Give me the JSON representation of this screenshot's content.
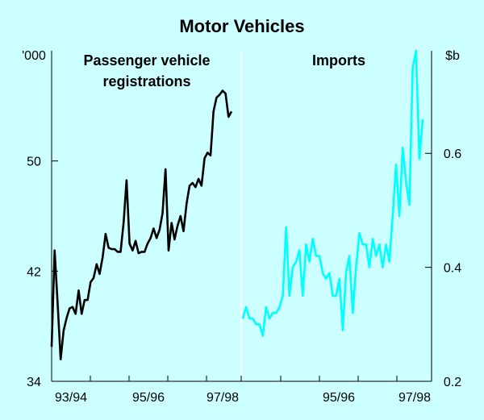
{
  "chart_data": {
    "title": "Motor Vehicles",
    "colors": {
      "background": "#ccffff",
      "registrations": "#000000",
      "imports": "#00ffff",
      "axes": "#000000",
      "divider": "#ffffff"
    },
    "panels": [
      {
        "type": "line",
        "label_lines": [
          "Passenger vehicle",
          "registrations"
        ],
        "unit": "'000",
        "y_ticks": [
          34,
          42,
          50
        ],
        "ylim": [
          34,
          58
        ],
        "x_ticks": [
          "93/94",
          "95/96",
          "97/98"
        ],
        "series": [
          {
            "color": "#000000",
            "values": [
              36.5,
              43.5,
              39.7,
              35.6,
              37.7,
              38.6,
              39.3,
              39.4,
              38.9,
              40.6,
              38.9,
              39.9,
              39.9,
              41.2,
              41.5,
              42.5,
              41.8,
              43.0,
              44.7,
              43.7,
              43.6,
              43.6,
              43.4,
              43.4,
              45.5,
              48.6,
              44.0,
              43.5,
              44.2,
              43.3,
              43.4,
              43.4,
              44.0,
              44.4,
              45.1,
              44.4,
              45.0,
              46.2,
              49.4,
              43.5,
              45.5,
              44.3,
              45.3,
              46.0,
              44.9,
              46.9,
              48.2,
              48.4,
              48.1,
              48.7,
              48.2,
              50.2,
              50.6,
              50.4,
              53.6,
              54.6,
              54.8,
              55.1,
              54.9,
              53.2,
              53.6
            ],
            "x_start_month": 0
          }
        ]
      },
      {
        "type": "line",
        "label_lines": [
          "Imports"
        ],
        "unit": "$b",
        "y_ticks": [
          0.2,
          0.4,
          0.6
        ],
        "ylim": [
          0.2,
          0.78
        ],
        "x_ticks": [
          "95/96",
          "97/98"
        ],
        "series": [
          {
            "color": "#00ffff",
            "values": [
              0.31,
              0.33,
              0.31,
              0.31,
              0.3,
              0.3,
              0.28,
              0.33,
              0.31,
              0.32,
              0.32,
              0.33,
              0.35,
              0.47,
              0.35,
              0.4,
              0.41,
              0.43,
              0.35,
              0.44,
              0.41,
              0.45,
              0.42,
              0.42,
              0.39,
              0.38,
              0.39,
              0.35,
              0.35,
              0.38,
              0.29,
              0.39,
              0.42,
              0.32,
              0.4,
              0.46,
              0.44,
              0.44,
              0.4,
              0.45,
              0.42,
              0.44,
              0.4,
              0.44,
              0.41,
              0.49,
              0.58,
              0.49,
              0.61,
              0.55,
              0.51,
              0.75,
              0.78,
              0.59,
              0.66
            ],
            "x_start_month": 0
          }
        ]
      }
    ]
  }
}
